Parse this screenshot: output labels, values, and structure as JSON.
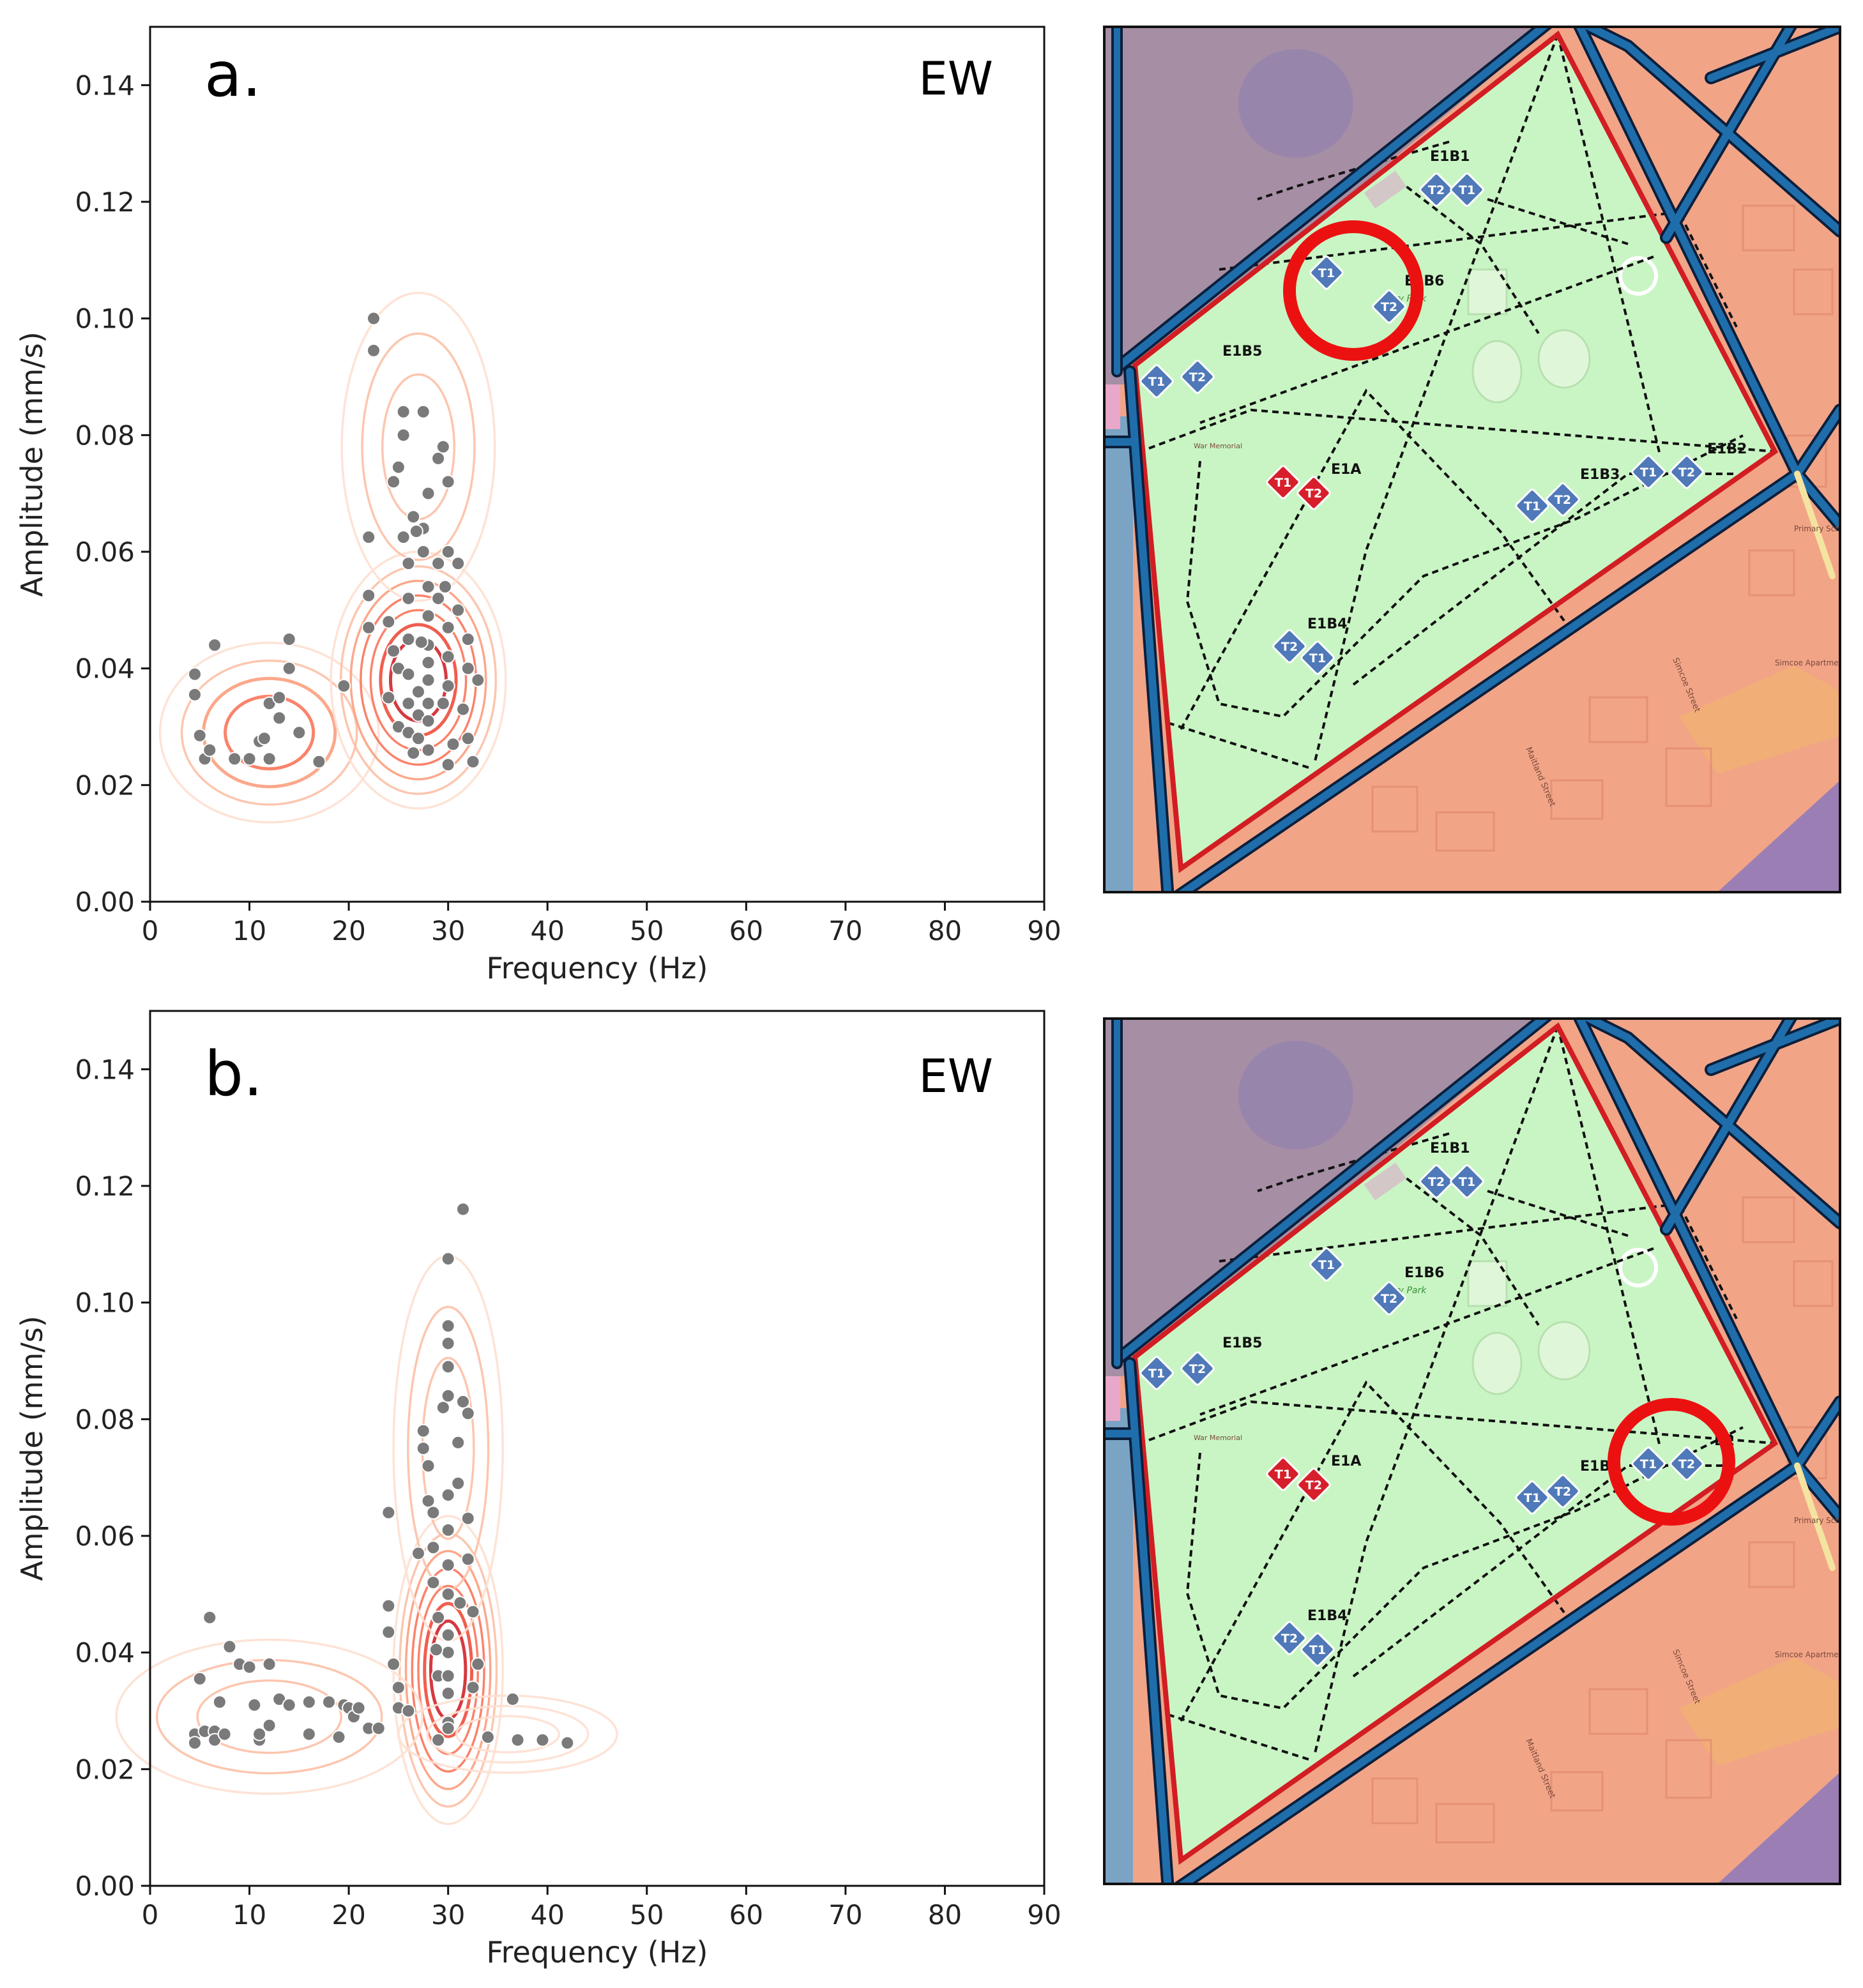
{
  "figure": {
    "panels": [
      "a.",
      "b."
    ]
  },
  "chart_data": [
    {
      "type": "scatter",
      "panel_label": "a.",
      "component": "EW",
      "xlabel": "Frequency (Hz)",
      "ylabel": "Amplitude (mm/s)",
      "xlim": [
        0,
        90
      ],
      "ylim": [
        0,
        0.15
      ],
      "xticks": [
        "0",
        "10",
        "20",
        "30",
        "40",
        "50",
        "60",
        "70",
        "80",
        "90"
      ],
      "yticks": [
        "0.00",
        "0.02",
        "0.04",
        "0.06",
        "0.08",
        "0.10",
        "0.12",
        "0.14"
      ],
      "grid": false,
      "overlay": "KDE density contours (reds colormap)",
      "density_clusters": [
        {
          "center": [
            12,
            0.029
          ],
          "spread": [
            5,
            0.007
          ],
          "weight": 0.6
        },
        {
          "center": [
            27,
            0.038
          ],
          "spread": [
            4,
            0.01
          ],
          "weight": 1.0
        },
        {
          "center": [
            27,
            0.078
          ],
          "spread": [
            3.5,
            0.012
          ],
          "weight": 0.35
        }
      ],
      "points": [
        [
          4.5,
          0.039
        ],
        [
          4.5,
          0.0355
        ],
        [
          5,
          0.0285
        ],
        [
          5.5,
          0.0245
        ],
        [
          6,
          0.026
        ],
        [
          6.5,
          0.044
        ],
        [
          8.5,
          0.0245
        ],
        [
          10,
          0.0245
        ],
        [
          11,
          0.0275
        ],
        [
          11.5,
          0.028
        ],
        [
          12,
          0.0245
        ],
        [
          12,
          0.034
        ],
        [
          13,
          0.0315
        ],
        [
          13,
          0.035
        ],
        [
          14,
          0.04
        ],
        [
          14,
          0.045
        ],
        [
          15,
          0.029
        ],
        [
          17,
          0.024
        ],
        [
          19.5,
          0.037
        ],
        [
          22,
          0.0625
        ],
        [
          22,
          0.0525
        ],
        [
          22,
          0.047
        ],
        [
          22.5,
          0.1
        ],
        [
          22.5,
          0.0945
        ],
        [
          24,
          0.048
        ],
        [
          24,
          0.035
        ],
        [
          24.5,
          0.072
        ],
        [
          25,
          0.04
        ],
        [
          25,
          0.03
        ],
        [
          25,
          0.0745
        ],
        [
          25.5,
          0.08
        ],
        [
          25.5,
          0.084
        ],
        [
          25.5,
          0.0625
        ],
        [
          26,
          0.058
        ],
        [
          26,
          0.052
        ],
        [
          26,
          0.045
        ],
        [
          26,
          0.039
        ],
        [
          26,
          0.034
        ],
        [
          26,
          0.029
        ],
        [
          26.5,
          0.066
        ],
        [
          27,
          0.036
        ],
        [
          27,
          0.032
        ],
        [
          27,
          0.028
        ],
        [
          27.5,
          0.084
        ],
        [
          27.5,
          0.064
        ],
        [
          27.5,
          0.06
        ],
        [
          28,
          0.07
        ],
        [
          28,
          0.054
        ],
        [
          28,
          0.049
        ],
        [
          28,
          0.044
        ],
        [
          28,
          0.041
        ],
        [
          28,
          0.038
        ],
        [
          28,
          0.034
        ],
        [
          28,
          0.031
        ],
        [
          28,
          0.026
        ],
        [
          29,
          0.076
        ],
        [
          29,
          0.058
        ],
        [
          29,
          0.052
        ],
        [
          29.5,
          0.034
        ],
        [
          29.5,
          0.078
        ],
        [
          30,
          0.072
        ],
        [
          30,
          0.06
        ],
        [
          30,
          0.047
        ],
        [
          30,
          0.042
        ],
        [
          30,
          0.037
        ],
        [
          30,
          0.0235
        ],
        [
          30.5,
          0.027
        ],
        [
          31,
          0.058
        ],
        [
          31,
          0.05
        ],
        [
          32,
          0.045
        ],
        [
          32,
          0.04
        ],
        [
          32,
          0.028
        ],
        [
          32.5,
          0.024
        ],
        [
          33,
          0.038
        ],
        [
          26.8,
          0.0635
        ],
        [
          29.7,
          0.054
        ],
        [
          27.3,
          0.0445
        ],
        [
          31.5,
          0.033
        ],
        [
          24.5,
          0.043
        ],
        [
          26.5,
          0.0255
        ]
      ]
    },
    {
      "type": "scatter",
      "panel_label": "b.",
      "component": "EW",
      "xlabel": "Frequency (Hz)",
      "ylabel": "Amplitude (mm/s)",
      "xlim": [
        0,
        90
      ],
      "ylim": [
        0,
        0.15
      ],
      "xticks": [
        "0",
        "10",
        "20",
        "30",
        "40",
        "50",
        "60",
        "70",
        "80",
        "90"
      ],
      "yticks": [
        "0.00",
        "0.02",
        "0.04",
        "0.06",
        "0.08",
        "0.10",
        "0.12",
        "0.14"
      ],
      "grid": false,
      "overlay": "KDE density contours (reds colormap)",
      "density_clusters": [
        {
          "center": [
            30,
            0.037
          ],
          "spread": [
            2.5,
            0.012
          ],
          "weight": 1.0
        },
        {
          "center": [
            30,
            0.075
          ],
          "spread": [
            2.5,
            0.015
          ],
          "weight": 0.35
        },
        {
          "center": [
            12,
            0.029
          ],
          "spread": [
            7,
            0.006
          ],
          "weight": 0.28
        },
        {
          "center": [
            36,
            0.026
          ],
          "spread": [
            5,
            0.003
          ],
          "weight": 0.12
        }
      ],
      "points": [
        [
          4.5,
          0.026
        ],
        [
          4.5,
          0.0245
        ],
        [
          5,
          0.0355
        ],
        [
          5.5,
          0.0265
        ],
        [
          6,
          0.046
        ],
        [
          6.5,
          0.0265
        ],
        [
          6.5,
          0.025
        ],
        [
          7,
          0.0315
        ],
        [
          7.5,
          0.026
        ],
        [
          8,
          0.041
        ],
        [
          9,
          0.038
        ],
        [
          10,
          0.0375
        ],
        [
          10.5,
          0.031
        ],
        [
          11,
          0.025
        ],
        [
          11,
          0.026
        ],
        [
          12,
          0.038
        ],
        [
          12,
          0.0275
        ],
        [
          13,
          0.032
        ],
        [
          14,
          0.031
        ],
        [
          16,
          0.026
        ],
        [
          16,
          0.0315
        ],
        [
          18,
          0.0315
        ],
        [
          19,
          0.0255
        ],
        [
          19.5,
          0.031
        ],
        [
          20,
          0.0305
        ],
        [
          20.5,
          0.029
        ],
        [
          21,
          0.0305
        ],
        [
          22,
          0.027
        ],
        [
          23,
          0.027
        ],
        [
          24,
          0.064
        ],
        [
          24,
          0.048
        ],
        [
          24,
          0.0435
        ],
        [
          24.5,
          0.038
        ],
        [
          25,
          0.034
        ],
        [
          25,
          0.0305
        ],
        [
          26,
          0.03
        ],
        [
          27,
          0.057
        ],
        [
          27.5,
          0.078
        ],
        [
          27.5,
          0.075
        ],
        [
          28,
          0.072
        ],
        [
          28,
          0.066
        ],
        [
          28.5,
          0.064
        ],
        [
          28.5,
          0.058
        ],
        [
          28.5,
          0.052
        ],
        [
          29,
          0.046
        ],
        [
          29,
          0.036
        ],
        [
          29,
          0.025
        ],
        [
          29.5,
          0.082
        ],
        [
          30,
          0.1075
        ],
        [
          30,
          0.096
        ],
        [
          30,
          0.093
        ],
        [
          30,
          0.089
        ],
        [
          30,
          0.084
        ],
        [
          30,
          0.067
        ],
        [
          30,
          0.061
        ],
        [
          30,
          0.055
        ],
        [
          30,
          0.05
        ],
        [
          30,
          0.043
        ],
        [
          30,
          0.04
        ],
        [
          30,
          0.036
        ],
        [
          30,
          0.033
        ],
        [
          30,
          0.028
        ],
        [
          30,
          0.027
        ],
        [
          31,
          0.076
        ],
        [
          31,
          0.069
        ],
        [
          31.5,
          0.116
        ],
        [
          31.5,
          0.083
        ],
        [
          32,
          0.081
        ],
        [
          32,
          0.063
        ],
        [
          32,
          0.056
        ],
        [
          32.5,
          0.047
        ],
        [
          32.5,
          0.034
        ],
        [
          33,
          0.038
        ],
        [
          34,
          0.0255
        ],
        [
          36.5,
          0.032
        ],
        [
          37,
          0.025
        ],
        [
          39.5,
          0.025
        ],
        [
          42,
          0.0245
        ],
        [
          31.2,
          0.0485
        ],
        [
          28.8,
          0.0405
        ]
      ]
    }
  ],
  "maps": [
    {
      "id": "map-a",
      "zone_labels": [
        "E1B1",
        "E1B6",
        "E1B5",
        "E1A",
        "E1B3",
        "E1B2",
        "E1B4"
      ],
      "park_text": "ry Park",
      "memorial_text": "War Memorial",
      "street_labels": [
        "Maitland Street",
        "Simcoe Street"
      ],
      "building_labels": [
        "Primary School",
        "Simcoe Apartments"
      ],
      "highlight": "E1B6",
      "sensors": [
        {
          "label": "T2",
          "color": "blue"
        },
        {
          "label": "T1",
          "color": "blue"
        },
        {
          "label": "T1",
          "color": "blue"
        },
        {
          "label": "T2",
          "color": "blue"
        },
        {
          "label": "T1",
          "color": "blue"
        },
        {
          "label": "T2",
          "color": "blue"
        },
        {
          "label": "T1",
          "color": "red"
        },
        {
          "label": "T2",
          "color": "red"
        },
        {
          "label": "T1",
          "color": "blue"
        },
        {
          "label": "T2",
          "color": "blue"
        },
        {
          "label": "T1",
          "color": "blue"
        },
        {
          "label": "T2",
          "color": "blue"
        },
        {
          "label": "T2",
          "color": "blue"
        },
        {
          "label": "T1",
          "color": "blue"
        }
      ]
    },
    {
      "id": "map-b",
      "zone_labels": [
        "E1B1",
        "E1B6",
        "E1B5",
        "E1A",
        "E1B",
        "B2",
        "E1B4"
      ],
      "park_text": "ry Park",
      "memorial_text": "War Memorial",
      "street_labels": [
        "Maitland Street",
        "Simcoe Street"
      ],
      "building_labels": [
        "Primary School",
        "Simcoe Apartments"
      ],
      "highlight": "E1B2",
      "sensors": [
        {
          "label": "T2",
          "color": "blue"
        },
        {
          "label": "T1",
          "color": "blue"
        },
        {
          "label": "T1",
          "color": "blue"
        },
        {
          "label": "T2",
          "color": "blue"
        },
        {
          "label": "T1",
          "color": "blue"
        },
        {
          "label": "T2",
          "color": "blue"
        },
        {
          "label": "T1",
          "color": "red"
        },
        {
          "label": "T2",
          "color": "red"
        },
        {
          "label": "T1",
          "color": "blue"
        },
        {
          "label": "T2",
          "color": "blue"
        },
        {
          "label": "T1",
          "color": "blue"
        },
        {
          "label": "T2",
          "color": "blue"
        },
        {
          "label": "T2",
          "color": "blue"
        },
        {
          "label": "T1",
          "color": "blue"
        }
      ]
    }
  ],
  "colors": {
    "point": "#7a7a7a",
    "contour": [
      "#fde0d2",
      "#fcc0a6",
      "#fc9e7e",
      "#f9765b",
      "#ee4c3c",
      "#d1242b",
      "#ad1420"
    ],
    "park": "#c9f5c4",
    "road": "#1f6eab",
    "road_edge": "#0b1f3b",
    "boundary": "#d21d23",
    "highlight": "#ec1111",
    "sensor_blue": "#4f79b8",
    "sensor_red": "#d71f2c",
    "residential": "#f2a487",
    "purple": "#a68ea4",
    "orange": "#f0b172"
  }
}
